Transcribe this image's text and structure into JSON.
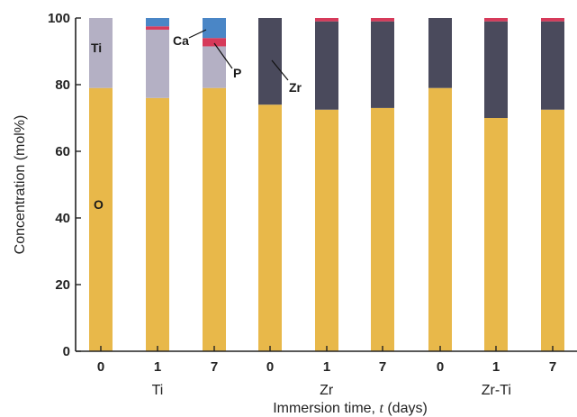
{
  "chart_data": {
    "type": "bar",
    "stacked": true,
    "ylabel": "Concentration (mol%)",
    "xlabel_prefix": "Immersion time, ",
    "xlabel_var": "t",
    "xlabel_suffix": " (days)",
    "ylim": [
      0,
      100
    ],
    "yticks": [
      "0",
      "20",
      "40",
      "60",
      "80",
      "100"
    ],
    "categories": [
      "0",
      "1",
      "7",
      "0",
      "1",
      "7",
      "0",
      "1",
      "7"
    ],
    "groups": [
      {
        "label": "Ti",
        "members": [
          0,
          1,
          2
        ]
      },
      {
        "label": "Zr",
        "members": [
          3,
          4,
          5
        ]
      },
      {
        "label": "Zr-Ti",
        "members": [
          6,
          7,
          8
        ]
      }
    ],
    "series": [
      {
        "name": "O",
        "color": "#e8b84a",
        "values": [
          79,
          76,
          79,
          74,
          72.5,
          73,
          79,
          70,
          72.5
        ]
      },
      {
        "name": "Ti",
        "color": "#b4b0c4",
        "values": [
          21,
          20.5,
          12.5,
          0,
          0,
          0,
          0,
          0,
          0
        ]
      },
      {
        "name": "Zr",
        "color": "#4a4a5c",
        "values": [
          0,
          0,
          0,
          26,
          26.5,
          26,
          21,
          29,
          26.5
        ]
      },
      {
        "name": "P",
        "color": "#d63a5a",
        "values": [
          0,
          1,
          2.5,
          0,
          1,
          1,
          0,
          1,
          1
        ]
      },
      {
        "name": "Ca",
        "color": "#4a86c6",
        "values": [
          0,
          2.5,
          6,
          0,
          0,
          0,
          0,
          0,
          0
        ]
      }
    ],
    "annotations": {
      "O": "O",
      "Ti": "Ti",
      "Ca": "Ca",
      "P": "P",
      "Zr": "Zr"
    }
  }
}
